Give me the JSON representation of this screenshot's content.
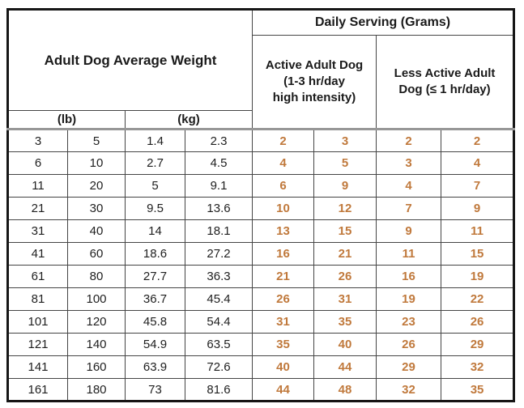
{
  "table": {
    "weight_header": "Adult Dog Average Weight",
    "serving_header": "Daily Serving (Grams)",
    "active_header": "Active Adult Dog\n(1-3 hr/day\nhigh intensity)",
    "less_active_header": "Less Active Adult\nDog (≤ 1 hr/day)",
    "lb_header": "(lb)",
    "kg_header": "(kg)"
  },
  "colors": {
    "serving_text": "#c0793c",
    "data_text": "#1f1f1f",
    "border_inner": "#454545",
    "border_outer": "#161616",
    "header_rule": "#979797"
  },
  "chart_data": {
    "type": "table",
    "title": "Adult Dog Average Weight / Daily Serving (Grams)",
    "column_groups": [
      {
        "label": "Adult Dog Average Weight",
        "subgroups": [
          "(lb)",
          "(kg)"
        ]
      },
      {
        "label": "Daily Serving (Grams)",
        "subgroups": [
          "Active Adult Dog (1-3 hr/day high intensity)",
          "Less Active Adult Dog (≤ 1 hr/day)"
        ]
      }
    ],
    "rows": [
      [
        "3",
        "5",
        "1.4",
        "2.3",
        "2",
        "3",
        "2",
        "2"
      ],
      [
        "6",
        "10",
        "2.7",
        "4.5",
        "4",
        "5",
        "3",
        "4"
      ],
      [
        "11",
        "20",
        "5",
        "9.1",
        "6",
        "9",
        "4",
        "7"
      ],
      [
        "21",
        "30",
        "9.5",
        "13.6",
        "10",
        "12",
        "7",
        "9"
      ],
      [
        "31",
        "40",
        "14",
        "18.1",
        "13",
        "15",
        "9",
        "11"
      ],
      [
        "41",
        "60",
        "18.6",
        "27.2",
        "16",
        "21",
        "11",
        "15"
      ],
      [
        "61",
        "80",
        "27.7",
        "36.3",
        "21",
        "26",
        "16",
        "19"
      ],
      [
        "81",
        "100",
        "36.7",
        "45.4",
        "26",
        "31",
        "19",
        "22"
      ],
      [
        "101",
        "120",
        "45.8",
        "54.4",
        "31",
        "35",
        "23",
        "26"
      ],
      [
        "121",
        "140",
        "54.9",
        "63.5",
        "35",
        "40",
        "26",
        "29"
      ],
      [
        "141",
        "160",
        "63.9",
        "72.6",
        "40",
        "44",
        "29",
        "32"
      ],
      [
        "161",
        "180",
        "73",
        "81.6",
        "44",
        "48",
        "32",
        "35"
      ]
    ]
  }
}
